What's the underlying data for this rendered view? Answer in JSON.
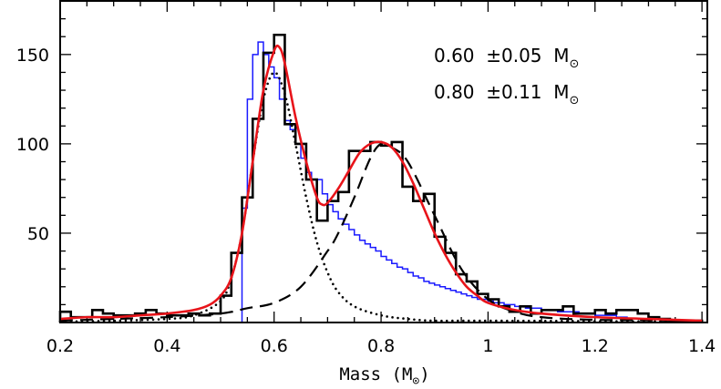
{
  "chart_data": {
    "type": "line",
    "title": "",
    "xlabel": "Mass (M",
    "xlabel_sub": "⊙",
    "xlabel_close": ")",
    "ylabel": "",
    "xlim": [
      0.2,
      1.41
    ],
    "ylim": [
      0,
      180
    ],
    "x_ticks": [
      0.2,
      0.4,
      0.6,
      0.8,
      1.0,
      1.2,
      1.4
    ],
    "x_tick_labels": [
      "0.2",
      "0.4",
      "0.6",
      "0.8",
      "1",
      "1.2",
      "1.4"
    ],
    "y_ticks": [
      50,
      100,
      150
    ],
    "y_tick_labels": [
      "50",
      "100",
      "150"
    ],
    "annotations": [
      {
        "text": "0.60  ±0.05  M",
        "sub": "⊙"
      },
      {
        "text": "0.80  ±0.11  M",
        "sub": "⊙"
      }
    ],
    "series": [
      {
        "name": "black-histogram",
        "kind": "step",
        "color": "#000000",
        "bin_start": 0.2,
        "bin_width": 0.02,
        "values": [
          6,
          3,
          3,
          7,
          5,
          4,
          4,
          5,
          7,
          5,
          4,
          4,
          5,
          4,
          5,
          15,
          39,
          70,
          114,
          151,
          161,
          111,
          100,
          80,
          57,
          68,
          73,
          96,
          96,
          101,
          99,
          101,
          76,
          68,
          72,
          48,
          39,
          27,
          23,
          16,
          13,
          9,
          6,
          9,
          5,
          7,
          7,
          9,
          5,
          5,
          7,
          5,
          7,
          7,
          5,
          3,
          2,
          1,
          1,
          1
        ]
      },
      {
        "name": "blue-histogram",
        "kind": "step",
        "color": "#1a1aff",
        "bin_start": 0.54,
        "bin_width": 0.01,
        "values": [
          64,
          125,
          150,
          157,
          150,
          143,
          137,
          125,
          113,
          108,
          100,
          92,
          84,
          80,
          80,
          72,
          66,
          62,
          58,
          55,
          52,
          49,
          46,
          44,
          42,
          40,
          37,
          35,
          33,
          31,
          30,
          28,
          26,
          25,
          23,
          22,
          21,
          20,
          19,
          18,
          17,
          16,
          15,
          14,
          13,
          13,
          12,
          11,
          11,
          10,
          10,
          9,
          9,
          8,
          8,
          8,
          7,
          7,
          7,
          6,
          6,
          6,
          6,
          5,
          5,
          5,
          4,
          4,
          4,
          4,
          3,
          3
        ]
      },
      {
        "name": "dotted-component",
        "kind": "dotted",
        "color": "#000000",
        "x": [
          0.2,
          0.3,
          0.4,
          0.45,
          0.5,
          0.52,
          0.54,
          0.56,
          0.58,
          0.6,
          0.62,
          0.64,
          0.66,
          0.68,
          0.7,
          0.72,
          0.75,
          0.8,
          0.85,
          0.9,
          1.0,
          1.4
        ],
        "y": [
          0.5,
          1,
          2,
          4,
          12,
          25,
          50,
          90,
          125,
          140,
          128,
          100,
          70,
          45,
          28,
          17,
          9,
          4,
          2,
          1,
          1,
          0.5
        ]
      },
      {
        "name": "dashed-component",
        "kind": "dashed",
        "color": "#000000",
        "x": [
          0.2,
          0.3,
          0.4,
          0.5,
          0.55,
          0.6,
          0.65,
          0.7,
          0.72,
          0.75,
          0.78,
          0.8,
          0.82,
          0.85,
          0.9,
          0.95,
          1.0,
          1.05,
          1.1,
          1.2,
          1.4
        ],
        "y": [
          1,
          2,
          3,
          5,
          8,
          11,
          20,
          40,
          50,
          70,
          92,
          100,
          98,
          90,
          60,
          30,
          13,
          6,
          3,
          1.5,
          1
        ]
      },
      {
        "name": "red-fit",
        "kind": "solid",
        "color": "#e8141a",
        "x": [
          0.2,
          0.25,
          0.3,
          0.35,
          0.4,
          0.45,
          0.48,
          0.5,
          0.52,
          0.54,
          0.56,
          0.58,
          0.6,
          0.61,
          0.62,
          0.64,
          0.66,
          0.68,
          0.69,
          0.7,
          0.72,
          0.74,
          0.76,
          0.78,
          0.8,
          0.82,
          0.84,
          0.86,
          0.88,
          0.9,
          0.92,
          0.94,
          0.96,
          0.98,
          1.0,
          1.05,
          1.1,
          1.2,
          1.3,
          1.4
        ],
        "y": [
          2,
          3,
          3,
          4,
          5,
          7,
          10,
          15,
          25,
          50,
          90,
          130,
          152,
          154,
          145,
          115,
          90,
          70,
          66,
          67,
          75,
          85,
          95,
          100,
          101,
          98,
          90,
          78,
          64,
          50,
          38,
          28,
          20,
          15,
          11,
          7,
          5,
          3,
          2,
          1
        ]
      }
    ]
  }
}
